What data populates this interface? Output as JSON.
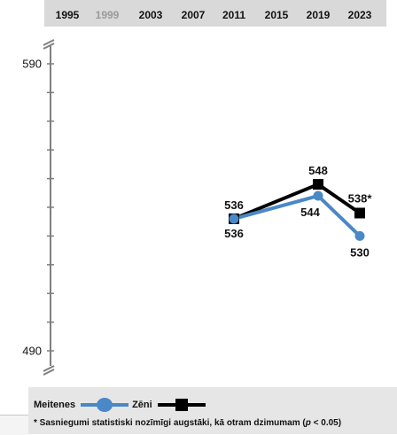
{
  "chart_data": {
    "type": "line",
    "years": [
      "1995",
      "1999",
      "2003",
      "2007",
      "2011",
      "2015",
      "2019",
      "2023"
    ],
    "dim_years": [
      "1999"
    ],
    "ylim": [
      490,
      590
    ],
    "ytick_labels": [
      "590",
      "490"
    ],
    "series": [
      {
        "name": "Meitenes",
        "color": "#4a88c7",
        "marker": "circle",
        "points": [
          {
            "year": "2011",
            "value": 536,
            "label": "536"
          },
          {
            "year": "2019",
            "value": 544,
            "label": "544"
          },
          {
            "year": "2023",
            "value": 530,
            "label": "530"
          }
        ]
      },
      {
        "name": "Zēni",
        "color": "#000000",
        "marker": "square",
        "points": [
          {
            "year": "2011",
            "value": 536,
            "label": "536"
          },
          {
            "year": "2019",
            "value": 548,
            "label": "548"
          },
          {
            "year": "2023",
            "value": 538,
            "label": "538*"
          }
        ]
      }
    ]
  },
  "legend": {
    "girls_label": "Meitenes",
    "boys_label": "Zēni"
  },
  "footnote": {
    "before": "* Sasniegumi statistiski nozīmīgi augstāki, kā otram dzimumam (",
    "p": "p",
    "after": " < 0.05)"
  }
}
